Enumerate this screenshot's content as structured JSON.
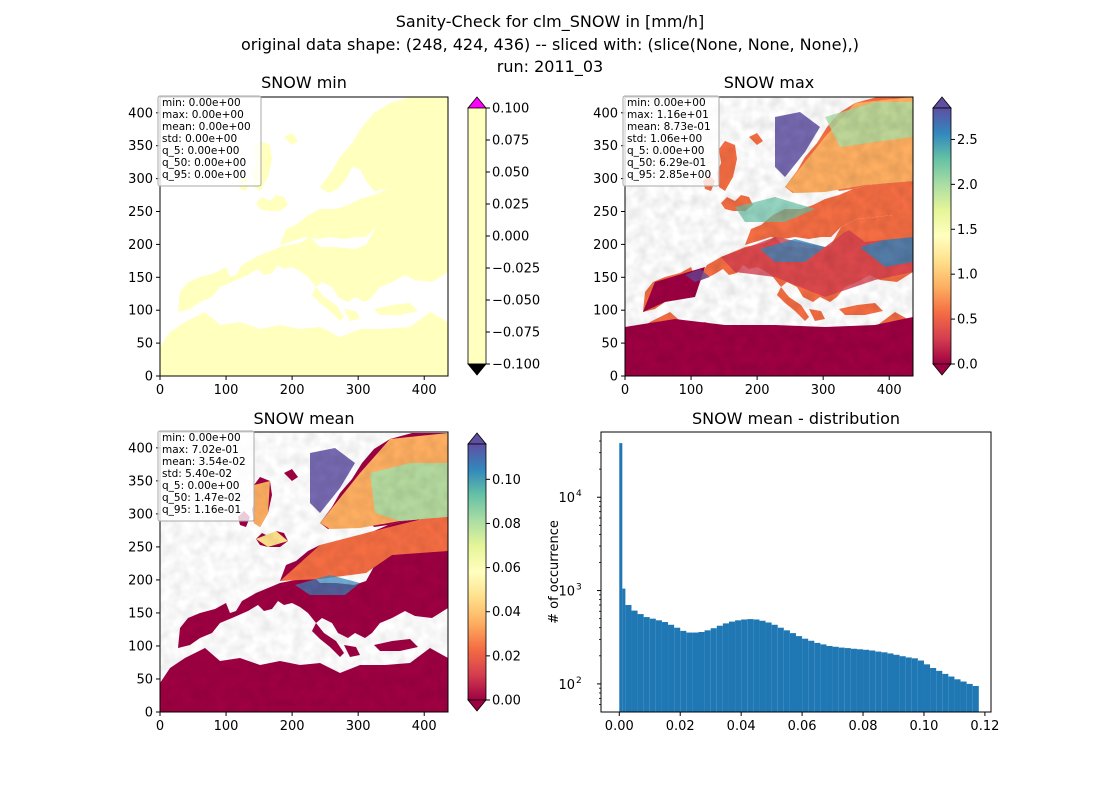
{
  "figure": {
    "title_lines": [
      "Sanity-Check for clm_SNOW in [mm/h]",
      "original data shape: (248, 424, 436) -- sliced with: (slice(None, None, None),)",
      "run: 2011_03"
    ]
  },
  "chart_data": [
    {
      "type": "heatmap",
      "title": "SNOW min",
      "x_ticks": [
        "0",
        "100",
        "200",
        "300",
        "400"
      ],
      "y_ticks": [
        "0",
        "50",
        "100",
        "150",
        "200",
        "250",
        "300",
        "350",
        "400"
      ],
      "xlim": [
        0,
        436
      ],
      "ylim": [
        0,
        424
      ],
      "colorbar": {
        "colormap": "Spectral",
        "ticks": [
          "0.100",
          "0.075",
          "0.050",
          "0.025",
          "0.000",
          "−0.025",
          "−0.050",
          "−0.075",
          "−0.100"
        ],
        "range": [
          -0.1,
          0.1
        ],
        "extend": "both",
        "over_color": "#ff00ff",
        "under_color": "#000000"
      },
      "stats": [
        "min: 0.00e+00",
        "max: 0.00e+00",
        "mean: 0.00e+00",
        "std: 0.00e+00",
        "q_5: 0.00e+00",
        "q_50: 0.00e+00",
        "q_95: 0.00e+00"
      ],
      "land_color": "#ffffbe",
      "sea_color": "#ffffff"
    },
    {
      "type": "heatmap",
      "title": "SNOW max",
      "x_ticks": [
        "0",
        "100",
        "200",
        "300",
        "400"
      ],
      "y_ticks": [
        "0",
        "50",
        "100",
        "150",
        "200",
        "250",
        "300",
        "350",
        "400"
      ],
      "xlim": [
        0,
        436
      ],
      "ylim": [
        0,
        424
      ],
      "colorbar": {
        "colormap": "Spectral",
        "ticks": [
          "2.5",
          "2.0",
          "1.5",
          "1.0",
          "0.5",
          "0.0"
        ],
        "tick_values": [
          2.5,
          2.0,
          1.5,
          1.0,
          0.5,
          0.0
        ],
        "range": [
          0,
          2.85
        ],
        "extend": "both"
      },
      "stats": [
        "min: 0.00e+00",
        "max: 1.16e+01",
        "mean: 8.73e-01",
        "std: 1.06e+00",
        "q_5: 0.00e+00",
        "q_50: 6.29e-01",
        "q_95: 2.85e+00"
      ]
    },
    {
      "type": "heatmap",
      "title": "SNOW mean",
      "x_ticks": [
        "0",
        "100",
        "200",
        "300",
        "400"
      ],
      "y_ticks": [
        "0",
        "50",
        "100",
        "150",
        "200",
        "250",
        "300",
        "350",
        "400"
      ],
      "xlim": [
        0,
        436
      ],
      "ylim": [
        0,
        424
      ],
      "colorbar": {
        "colormap": "Spectral",
        "ticks": [
          "0.10",
          "0.08",
          "0.06",
          "0.04",
          "0.02",
          "0.00"
        ],
        "tick_values": [
          0.1,
          0.08,
          0.06,
          0.04,
          0.02,
          0.0
        ],
        "range": [
          0,
          0.116
        ],
        "extend": "both"
      },
      "stats": [
        "min: 0.00e+00",
        "max: 7.02e-01",
        "mean: 3.54e-02",
        "std: 5.40e-02",
        "q_5: 0.00e+00",
        "q_50: 1.47e-02",
        "q_95: 1.16e-01"
      ]
    },
    {
      "type": "bar",
      "title": "SNOW mean - distribution",
      "ylabel": "# of occurrence",
      "xlabel": "",
      "yscale": "log",
      "xlim": [
        -0.006,
        0.122
      ],
      "ylim": [
        50,
        50000
      ],
      "x_ticks": [
        "0.00",
        "0.02",
        "0.04",
        "0.06",
        "0.08",
        "0.10",
        "0.12"
      ],
      "x_tick_values": [
        0.0,
        0.02,
        0.04,
        0.06,
        0.08,
        0.1,
        0.12
      ],
      "y_ticks": [
        {
          "base": "10",
          "exp": "2",
          "value": 100
        },
        {
          "base": "10",
          "exp": "3",
          "value": 1000
        },
        {
          "base": "10",
          "exp": "4",
          "value": 10000
        }
      ],
      "bar_color": "#1f77b4",
      "bins": [
        0,
        0.116
      ],
      "x": [
        0.0,
        0.001,
        0.002,
        0.004,
        0.006,
        0.008,
        0.01,
        0.012,
        0.014,
        0.016,
        0.018,
        0.02,
        0.022,
        0.024,
        0.026,
        0.028,
        0.03,
        0.032,
        0.034,
        0.036,
        0.038,
        0.04,
        0.042,
        0.044,
        0.046,
        0.048,
        0.05,
        0.052,
        0.054,
        0.056,
        0.058,
        0.06,
        0.062,
        0.064,
        0.066,
        0.068,
        0.07,
        0.072,
        0.074,
        0.076,
        0.078,
        0.08,
        0.082,
        0.084,
        0.086,
        0.088,
        0.09,
        0.092,
        0.094,
        0.096,
        0.098,
        0.1,
        0.102,
        0.104,
        0.106,
        0.108,
        0.11,
        0.112,
        0.114,
        0.116
      ],
      "values": [
        38000,
        1050,
        700,
        610,
        560,
        520,
        500,
        480,
        460,
        430,
        400,
        370,
        355,
        355,
        360,
        375,
        395,
        420,
        445,
        465,
        480,
        490,
        495,
        490,
        475,
        455,
        430,
        400,
        375,
        350,
        325,
        305,
        290,
        275,
        265,
        255,
        250,
        245,
        242,
        238,
        235,
        232,
        228,
        222,
        218,
        212,
        205,
        198,
        192,
        188,
        178,
        162,
        148,
        138,
        128,
        120,
        112,
        106,
        100,
        95
      ]
    }
  ]
}
